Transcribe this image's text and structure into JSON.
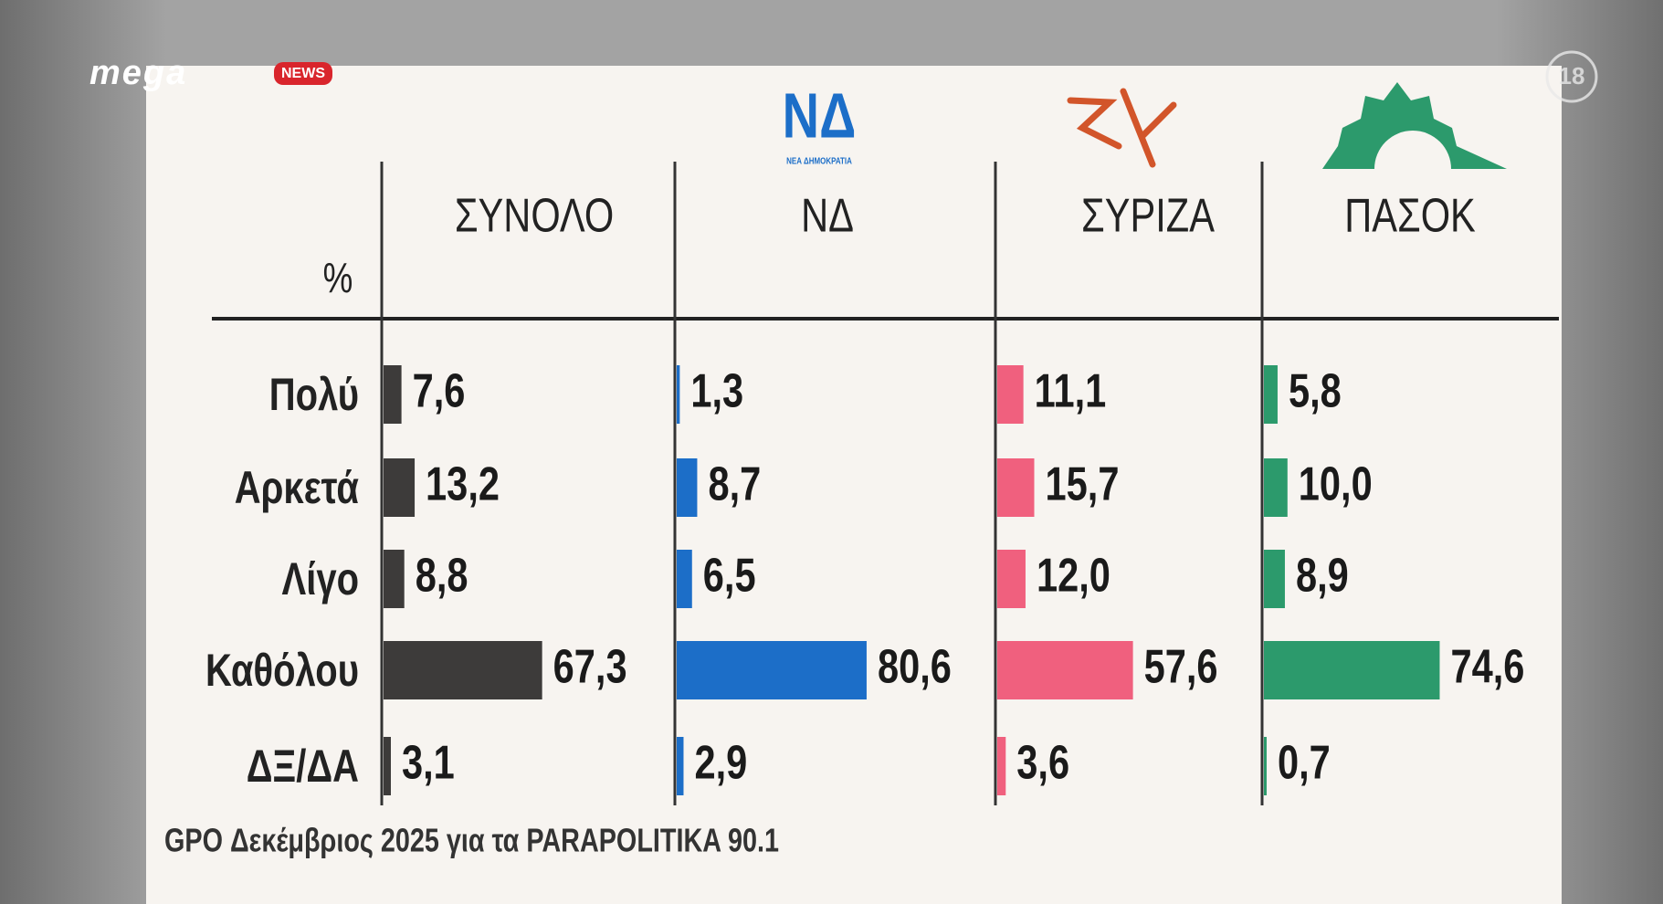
{
  "channel": {
    "logo": "mega",
    "badge": "NEWS",
    "rating": "18"
  },
  "chart_data": {
    "type": "bar",
    "unit": "%",
    "logos": {
      "nd": "ΝΔ",
      "nd_sub": "ΝΕΑ ΔΗΜΟΚΡΑΤΙΑ"
    },
    "categories": [
      "Πολύ",
      "Αρκετά",
      "Λίγο",
      "Καθόλου",
      "ΔΞ/ΔΑ"
    ],
    "series": [
      {
        "name": "ΣΥΝΟΛΟ",
        "color": "#3d3b3a",
        "values": [
          7.6,
          13.2,
          8.8,
          67.3,
          3.1
        ],
        "value_labels": [
          "7,6",
          "13,2",
          "8,8",
          "67,3",
          "3,1"
        ]
      },
      {
        "name": "ΝΔ",
        "color": "#1c6ec8",
        "values": [
          1.3,
          8.7,
          6.5,
          80.6,
          2.9
        ],
        "value_labels": [
          "1,3",
          "8,7",
          "6,5",
          "80,6",
          "2,9"
        ]
      },
      {
        "name": "ΣΥΡΙΖΑ",
        "color": "#f0607e",
        "values": [
          11.1,
          15.7,
          12.0,
          57.6,
          3.6
        ],
        "value_labels": [
          "11,1",
          "15,7",
          "12,0",
          "57,6",
          "3,6"
        ]
      },
      {
        "name": "ΠΑΣΟΚ",
        "color": "#2c9a6c",
        "values": [
          5.8,
          10.0,
          8.9,
          74.6,
          0.7
        ],
        "value_labels": [
          "5,8",
          "10,0",
          "8,9",
          "74,6",
          "0,7"
        ]
      }
    ],
    "source": "GPO Δεκέμβριος 2025 για τα PARAPOLITIKA 90.1"
  }
}
